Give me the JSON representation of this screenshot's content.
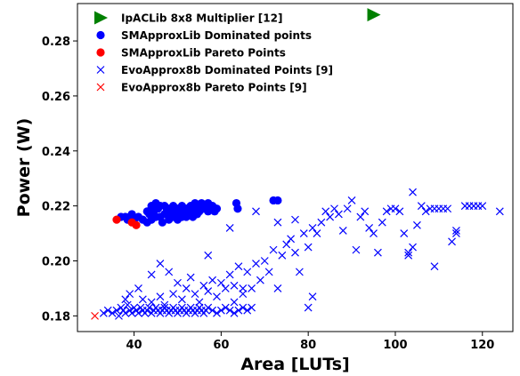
{
  "chart_data": {
    "type": "scatter",
    "xlabel": "Area [LUTs]",
    "ylabel": "Power (W)",
    "xlim": [
      27,
      127
    ],
    "ylim": [
      0.1743,
      0.2936
    ],
    "xticks": [
      40,
      60,
      80,
      100,
      120
    ],
    "yticks": [
      0.18,
      0.2,
      0.22,
      0.24,
      0.26,
      0.28
    ],
    "xtick_labels": [
      "40",
      "60",
      "80",
      "100",
      "120"
    ],
    "ytick_labels": [
      "0.18",
      "0.20",
      "0.22",
      "0.24",
      "0.26",
      "0.28"
    ],
    "grid": false,
    "legend_placement": "upper-left",
    "series": [
      {
        "name": "IpACLib 8x8 Multiplier [12]",
        "marker": "triangle-right",
        "color": "#008000",
        "points": [
          [
            95,
            0.2895
          ]
        ]
      },
      {
        "name": "SMApproxLib Dominated points",
        "marker": "circle",
        "color": "#0000ff",
        "points": [
          [
            37,
            0.216
          ],
          [
            38,
            0.216
          ],
          [
            38.5,
            0.215
          ],
          [
            39,
            0.216
          ],
          [
            39.5,
            0.217
          ],
          [
            40,
            0.215
          ],
          [
            41,
            0.216
          ],
          [
            42,
            0.215
          ],
          [
            43,
            0.214
          ],
          [
            43,
            0.218
          ],
          [
            43.5,
            0.217
          ],
          [
            44,
            0.22
          ],
          [
            44,
            0.215
          ],
          [
            44.5,
            0.218
          ],
          [
            45,
            0.221
          ],
          [
            45,
            0.216
          ],
          [
            45.5,
            0.219
          ],
          [
            46,
            0.22
          ],
          [
            46,
            0.216
          ],
          [
            46.5,
            0.214
          ],
          [
            47,
            0.22
          ],
          [
            47,
            0.217
          ],
          [
            47.5,
            0.218
          ],
          [
            48,
            0.219
          ],
          [
            48,
            0.215
          ],
          [
            48.5,
            0.217
          ],
          [
            49,
            0.22
          ],
          [
            49,
            0.216
          ],
          [
            49.5,
            0.218
          ],
          [
            50,
            0.219
          ],
          [
            50,
            0.215
          ],
          [
            50.5,
            0.217
          ],
          [
            51,
            0.22
          ],
          [
            51,
            0.216
          ],
          [
            51.5,
            0.218
          ],
          [
            52,
            0.219
          ],
          [
            52,
            0.216
          ],
          [
            52.5,
            0.217
          ],
          [
            53,
            0.22
          ],
          [
            53,
            0.218
          ],
          [
            53.5,
            0.216
          ],
          [
            54,
            0.221
          ],
          [
            54,
            0.219
          ],
          [
            54.5,
            0.217
          ],
          [
            55,
            0.22
          ],
          [
            55,
            0.218
          ],
          [
            55.5,
            0.221
          ],
          [
            56,
            0.219
          ],
          [
            56.5,
            0.22
          ],
          [
            57,
            0.218
          ],
          [
            57,
            0.221
          ],
          [
            57.5,
            0.219
          ],
          [
            58,
            0.22
          ],
          [
            58.5,
            0.218
          ],
          [
            59,
            0.219
          ],
          [
            63.5,
            0.221
          ],
          [
            63.8,
            0.219
          ],
          [
            72,
            0.222
          ],
          [
            73,
            0.222
          ]
        ]
      },
      {
        "name": "SMApproxLib Pareto Points",
        "marker": "circle",
        "color": "#ff0000",
        "points": [
          [
            36,
            0.215
          ],
          [
            39.5,
            0.214
          ],
          [
            40.5,
            0.213
          ]
        ]
      },
      {
        "name": "EvoApprox8b Dominated Points [9]",
        "marker": "x",
        "color": "#0000ff",
        "points": [
          [
            33,
            0.181
          ],
          [
            34,
            0.182
          ],
          [
            35,
            0.181
          ],
          [
            36,
            0.182
          ],
          [
            36.5,
            0.18
          ],
          [
            37,
            0.183
          ],
          [
            37.5,
            0.182
          ],
          [
            38,
            0.181
          ],
          [
            38.5,
            0.184
          ],
          [
            39,
            0.182
          ],
          [
            39.5,
            0.181
          ],
          [
            40,
            0.183
          ],
          [
            40.5,
            0.182
          ],
          [
            41,
            0.181
          ],
          [
            41.5,
            0.183
          ],
          [
            42,
            0.182
          ],
          [
            42.5,
            0.181
          ],
          [
            43,
            0.182
          ],
          [
            43.5,
            0.183
          ],
          [
            44,
            0.181
          ],
          [
            44.5,
            0.182
          ],
          [
            45,
            0.183
          ],
          [
            45.5,
            0.182
          ],
          [
            46,
            0.181
          ],
          [
            46.5,
            0.182
          ],
          [
            47,
            0.183
          ],
          [
            47.5,
            0.182
          ],
          [
            48,
            0.181
          ],
          [
            48.5,
            0.182
          ],
          [
            49,
            0.183
          ],
          [
            49.5,
            0.182
          ],
          [
            50,
            0.181
          ],
          [
            50.5,
            0.182
          ],
          [
            51,
            0.183
          ],
          [
            51.5,
            0.182
          ],
          [
            52,
            0.181
          ],
          [
            52.5,
            0.182
          ],
          [
            53,
            0.183
          ],
          [
            53.5,
            0.182
          ],
          [
            54,
            0.181
          ],
          [
            54.5,
            0.182
          ],
          [
            55,
            0.183
          ],
          [
            55.5,
            0.182
          ],
          [
            56,
            0.181
          ],
          [
            56.5,
            0.182
          ],
          [
            57,
            0.183
          ],
          [
            58,
            0.182
          ],
          [
            59,
            0.181
          ],
          [
            60,
            0.182
          ],
          [
            61,
            0.183
          ],
          [
            62,
            0.182
          ],
          [
            63,
            0.181
          ],
          [
            64,
            0.182
          ],
          [
            65,
            0.183
          ],
          [
            66,
            0.182
          ],
          [
            67,
            0.183
          ],
          [
            38,
            0.186
          ],
          [
            39,
            0.188
          ],
          [
            41,
            0.19
          ],
          [
            42,
            0.186
          ],
          [
            44,
            0.185
          ],
          [
            46,
            0.187
          ],
          [
            47,
            0.184
          ],
          [
            49,
            0.188
          ],
          [
            50,
            0.192
          ],
          [
            51,
            0.186
          ],
          [
            52,
            0.19
          ],
          [
            53,
            0.194
          ],
          [
            54,
            0.188
          ],
          [
            55,
            0.185
          ],
          [
            56,
            0.191
          ],
          [
            57,
            0.189
          ],
          [
            58,
            0.193
          ],
          [
            59,
            0.187
          ],
          [
            60,
            0.192
          ],
          [
            61,
            0.19
          ],
          [
            62,
            0.195
          ],
          [
            63,
            0.191
          ],
          [
            64,
            0.198
          ],
          [
            65,
            0.188
          ],
          [
            66,
            0.196
          ],
          [
            67,
            0.19
          ],
          [
            68,
            0.199
          ],
          [
            69,
            0.193
          ],
          [
            70,
            0.2
          ],
          [
            71,
            0.196
          ],
          [
            72,
            0.204
          ],
          [
            73,
            0.19
          ],
          [
            74,
            0.202
          ],
          [
            75,
            0.206
          ],
          [
            76,
            0.208
          ],
          [
            77,
            0.203
          ],
          [
            78,
            0.196
          ],
          [
            79,
            0.21
          ],
          [
            80,
            0.205
          ],
          [
            81,
            0.212
          ],
          [
            82,
            0.21
          ],
          [
            83,
            0.214
          ],
          [
            84,
            0.218
          ],
          [
            85,
            0.216
          ],
          [
            86,
            0.219
          ],
          [
            87,
            0.217
          ],
          [
            88,
            0.211
          ],
          [
            89,
            0.219
          ],
          [
            90,
            0.222
          ],
          [
            91,
            0.204
          ],
          [
            92,
            0.216
          ],
          [
            93,
            0.218
          ],
          [
            94,
            0.212
          ],
          [
            95,
            0.21
          ],
          [
            96,
            0.203
          ],
          [
            97,
            0.214
          ],
          [
            98,
            0.218
          ],
          [
            99,
            0.219
          ],
          [
            100,
            0.219
          ],
          [
            101,
            0.218
          ],
          [
            102,
            0.21
          ],
          [
            103,
            0.202
          ],
          [
            104,
            0.225
          ],
          [
            105,
            0.213
          ],
          [
            106,
            0.22
          ],
          [
            107,
            0.218
          ],
          [
            108,
            0.219
          ],
          [
            109,
            0.219
          ],
          [
            110,
            0.219
          ],
          [
            111,
            0.219
          ],
          [
            112,
            0.219
          ],
          [
            113,
            0.207
          ],
          [
            114,
            0.211
          ],
          [
            116,
            0.22
          ],
          [
            117,
            0.22
          ],
          [
            118,
            0.22
          ],
          [
            119,
            0.22
          ],
          [
            120,
            0.22
          ],
          [
            124,
            0.218
          ],
          [
            44,
            0.195
          ],
          [
            46,
            0.199
          ],
          [
            48,
            0.196
          ],
          [
            57,
            0.202
          ],
          [
            62,
            0.212
          ],
          [
            68,
            0.218
          ],
          [
            73,
            0.214
          ],
          [
            77,
            0.215
          ],
          [
            80,
            0.183
          ],
          [
            81,
            0.187
          ],
          [
            103,
            0.203
          ],
          [
            104,
            0.205
          ],
          [
            109,
            0.198
          ],
          [
            114,
            0.21
          ],
          [
            63,
            0.185
          ],
          [
            65,
            0.19
          ]
        ]
      },
      {
        "name": "EvoApprox8b Pareto Points [9]",
        "marker": "x",
        "color": "#ff0000",
        "points": [
          [
            31,
            0.18
          ]
        ]
      }
    ]
  }
}
